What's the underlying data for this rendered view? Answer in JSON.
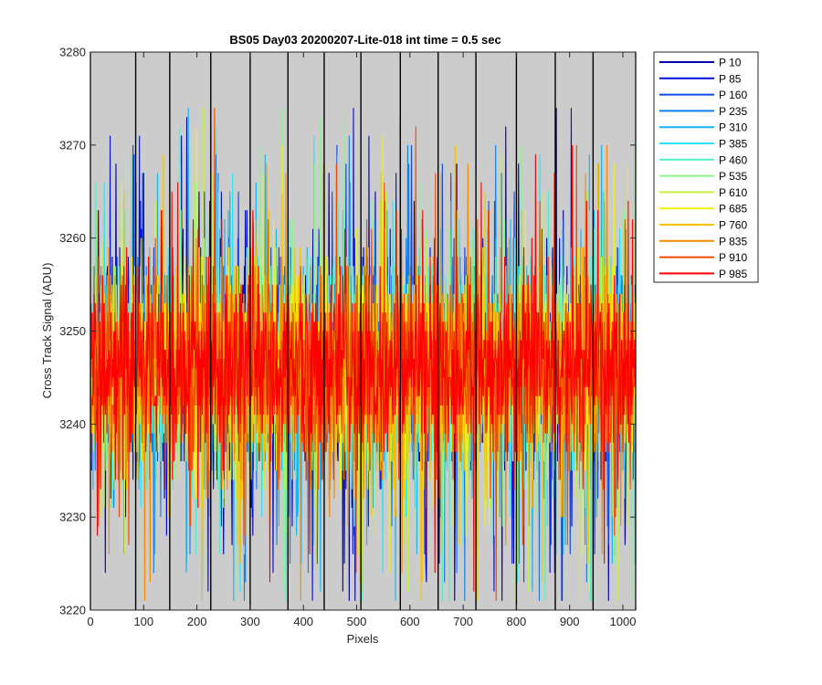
{
  "chart_data": {
    "type": "line",
    "title": "BS05 Day03 20200207-Lite-018 int time = 0.5 sec",
    "xlabel": "Pixels",
    "ylabel": "Cross Track Signal (ADU)",
    "xlim": [
      0,
      1024
    ],
    "ylim": [
      3220,
      3280
    ],
    "xticks": [
      "0",
      "100",
      "200",
      "300",
      "400",
      "500",
      "600",
      "700",
      "800",
      "900",
      "1000"
    ],
    "yticks": [
      "3220",
      "3230",
      "3240",
      "3250",
      "3260",
      "3270",
      "3280"
    ],
    "xtick_values": [
      0,
      100,
      200,
      300,
      400,
      500,
      600,
      700,
      800,
      900,
      1000
    ],
    "ytick_values": [
      3220,
      3230,
      3240,
      3250,
      3260,
      3270,
      3280
    ],
    "channel_boundaries": [
      0,
      85,
      149,
      226,
      300,
      371,
      439,
      508,
      582,
      653,
      724,
      800,
      873,
      944,
      1024
    ],
    "background": "#cccccc",
    "grid": false,
    "legend_position": "outside-top-right",
    "series": [
      {
        "name": "P 10",
        "color": "#0000a8",
        "mean": 3246,
        "std": 8.5
      },
      {
        "name": "P 85",
        "color": "#0010d9",
        "mean": 3246,
        "std": 8.5
      },
      {
        "name": "P 160",
        "color": "#0d47e6",
        "mean": 3246,
        "std": 8.5
      },
      {
        "name": "P 235",
        "color": "#0f7fea",
        "mean": 3246,
        "std": 8.3
      },
      {
        "name": "P 310",
        "color": "#14b5f0",
        "mean": 3246,
        "std": 8.3
      },
      {
        "name": "P 385",
        "color": "#25e6f2",
        "mean": 3246,
        "std": 8.2
      },
      {
        "name": "P 460",
        "color": "#4ff0c8",
        "mean": 3246,
        "std": 8.2
      },
      {
        "name": "P 535",
        "color": "#8af58c",
        "mean": 3246,
        "std": 8.0
      },
      {
        "name": "P 610",
        "color": "#c4f23e",
        "mean": 3246,
        "std": 8.0
      },
      {
        "name": "P 685",
        "color": "#f2f20a",
        "mean": 3246,
        "std": 7.8
      },
      {
        "name": "P 760",
        "color": "#f5c400",
        "mean": 3246,
        "std": 7.8
      },
      {
        "name": "P 835",
        "color": "#f58a00",
        "mean": 3246,
        "std": 7.6
      },
      {
        "name": "P 910",
        "color": "#f24a00",
        "mean": 3246,
        "std": 7.5
      },
      {
        "name": "P 985",
        "color": "#ff0000",
        "mean": 3246,
        "std": 7.2
      }
    ]
  }
}
